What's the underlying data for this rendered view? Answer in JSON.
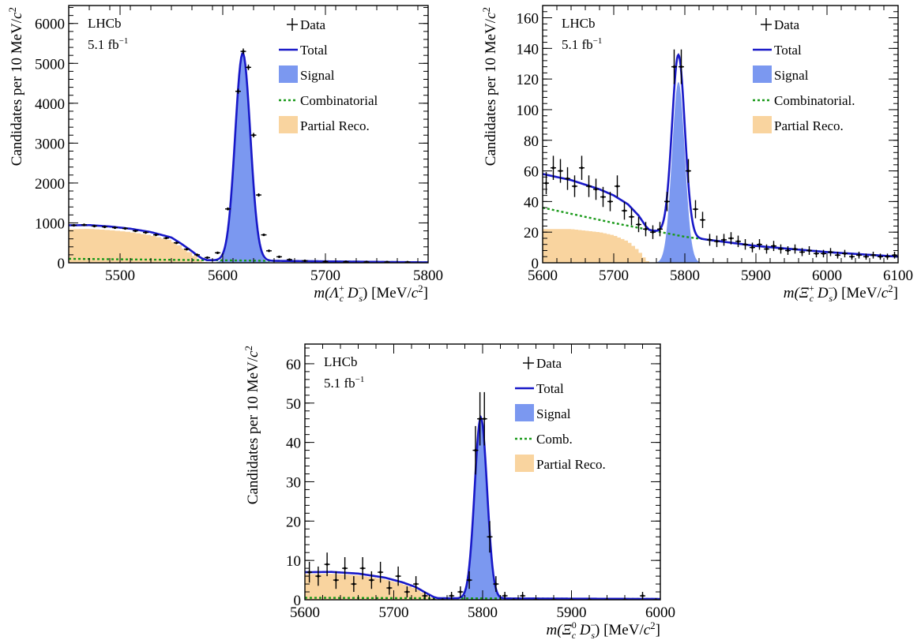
{
  "chart_data": [
    {
      "id": "lambda",
      "type": "histogram",
      "experiment": "LHCb",
      "luminosity_base": "5.1 fb",
      "luminosity_sup": "−1",
      "ylabel_main": "Candidates per 10 MeV/",
      "ylabel_unit": "c",
      "ylabel_sup": "2",
      "xlabel": {
        "pre": "m(",
        "part": "Λ",
        "sub": "c",
        "sup": "+",
        "mid": " D",
        "sub2": "s",
        "sup2": "−",
        "post": ") [MeV/",
        "unit": "c",
        "unitsup": "2",
        "end": "]"
      },
      "xlim": [
        5450,
        5800
      ],
      "ylim": [
        0,
        6450
      ],
      "xticks": [
        5500,
        5600,
        5700,
        5800
      ],
      "yticks": [
        0,
        1000,
        2000,
        3000,
        4000,
        5000,
        6000
      ],
      "legend": [
        "Data",
        "Total",
        "Signal",
        "Combinatorial",
        "Partial Reco."
      ],
      "signal": {
        "mean": 5619.5,
        "sigma": 7.4,
        "amp": 5200
      },
      "comb": [
        [
          5450,
          100
        ],
        [
          5800,
          10
        ]
      ],
      "partial": [
        [
          5450,
          840
        ],
        [
          5470,
          850
        ],
        [
          5490,
          820
        ],
        [
          5510,
          770
        ],
        [
          5530,
          690
        ],
        [
          5550,
          560
        ],
        [
          5560,
          400
        ],
        [
          5570,
          220
        ],
        [
          5575,
          120
        ],
        [
          5580,
          40
        ],
        [
          5585,
          0
        ]
      ],
      "data": [
        [
          5455,
          940
        ],
        [
          5465,
          950
        ],
        [
          5475,
          920
        ],
        [
          5485,
          900
        ],
        [
          5495,
          880
        ],
        [
          5505,
          860
        ],
        [
          5515,
          800
        ],
        [
          5525,
          760
        ],
        [
          5535,
          700
        ],
        [
          5545,
          620
        ],
        [
          5555,
          500
        ],
        [
          5565,
          340
        ],
        [
          5575,
          200
        ],
        [
          5585,
          130
        ],
        [
          5595,
          250
        ],
        [
          5605,
          1350
        ],
        [
          5615,
          4300
        ],
        [
          5620,
          5300
        ],
        [
          5625,
          4900
        ],
        [
          5630,
          3200
        ],
        [
          5635,
          1700
        ],
        [
          5640,
          700
        ],
        [
          5645,
          300
        ],
        [
          5655,
          150
        ],
        [
          5665,
          80
        ],
        [
          5680,
          50
        ],
        [
          5700,
          30
        ],
        [
          5720,
          25
        ],
        [
          5740,
          20
        ],
        [
          5760,
          18
        ],
        [
          5780,
          15
        ]
      ]
    },
    {
      "id": "xi-plus",
      "type": "histogram",
      "experiment": "LHCb",
      "luminosity_base": "5.1 fb",
      "luminosity_sup": "−1",
      "ylabel_main": "Candidates per 10 MeV/",
      "ylabel_unit": "c",
      "ylabel_sup": "2",
      "xlabel": {
        "pre": "m(",
        "part": "Ξ",
        "sub": "c",
        "sup": "+",
        "mid": " D",
        "sub2": "s",
        "sup2": "−",
        "post": ") [MeV/",
        "unit": "c",
        "unitsup": "2",
        "end": "]"
      },
      "xlim": [
        5600,
        6100
      ],
      "ylim": [
        0,
        168
      ],
      "xticks": [
        5600,
        5700,
        5800,
        5900,
        6000,
        6100
      ],
      "yticks": [
        0,
        20,
        40,
        60,
        80,
        100,
        120,
        140,
        160
      ],
      "legend": [
        "Data",
        "Total",
        "Signal",
        "Combinatorial.",
        "Partial Reco."
      ],
      "signal": {
        "mean": 5791,
        "sigma": 9,
        "amp": 118
      },
      "comb": [
        [
          5600,
          36
        ],
        [
          5700,
          26
        ],
        [
          5800,
          17
        ],
        [
          5900,
          11
        ],
        [
          6000,
          7
        ],
        [
          6100,
          4
        ]
      ],
      "partial": [
        [
          5600,
          22
        ],
        [
          5640,
          22
        ],
        [
          5680,
          20
        ],
        [
          5700,
          18
        ],
        [
          5720,
          14
        ],
        [
          5735,
          8
        ],
        [
          5745,
          2
        ],
        [
          5750,
          0
        ]
      ],
      "data": [
        [
          5605,
          52
        ],
        [
          5615,
          62
        ],
        [
          5625,
          60
        ],
        [
          5635,
          55
        ],
        [
          5645,
          50
        ],
        [
          5655,
          62
        ],
        [
          5665,
          50
        ],
        [
          5675,
          48
        ],
        [
          5685,
          43
        ],
        [
          5695,
          40
        ],
        [
          5705,
          50
        ],
        [
          5715,
          34
        ],
        [
          5725,
          30
        ],
        [
          5735,
          25
        ],
        [
          5745,
          22
        ],
        [
          5755,
          20
        ],
        [
          5765,
          22
        ],
        [
          5775,
          40
        ],
        [
          5785,
          128
        ],
        [
          5795,
          128
        ],
        [
          5805,
          60
        ],
        [
          5815,
          35
        ],
        [
          5825,
          28
        ],
        [
          5835,
          15
        ],
        [
          5845,
          14
        ],
        [
          5855,
          15
        ],
        [
          5865,
          16
        ],
        [
          5875,
          14
        ],
        [
          5885,
          12
        ],
        [
          5895,
          10
        ],
        [
          5905,
          12
        ],
        [
          5915,
          9
        ],
        [
          5925,
          11
        ],
        [
          5935,
          9
        ],
        [
          5945,
          8
        ],
        [
          5955,
          9
        ],
        [
          5965,
          7
        ],
        [
          5975,
          8
        ],
        [
          5985,
          6
        ],
        [
          5995,
          6
        ],
        [
          6005,
          7
        ],
        [
          6015,
          5
        ],
        [
          6025,
          6
        ],
        [
          6035,
          4
        ],
        [
          6045,
          5
        ],
        [
          6055,
          4
        ],
        [
          6065,
          5
        ],
        [
          6075,
          4
        ],
        [
          6085,
          4
        ],
        [
          6095,
          5
        ]
      ]
    },
    {
      "id": "xi-zero",
      "type": "histogram",
      "experiment": "LHCb",
      "luminosity_base": "5.1 fb",
      "luminosity_sup": "−1",
      "ylabel_main": "Candidates per 10 MeV/",
      "ylabel_unit": "c",
      "ylabel_sup": "2",
      "xlabel": {
        "pre": "m(",
        "part": "Ξ",
        "sub": "c",
        "sup": "0",
        "mid": " D",
        "sub2": "s",
        "sup2": "−",
        "post": ") [MeV/",
        "unit": "c",
        "unitsup": "2",
        "end": "]"
      },
      "xlim": [
        5600,
        6000
      ],
      "ylim": [
        0,
        65
      ],
      "xticks": [
        5600,
        5700,
        5800,
        5900,
        6000
      ],
      "yticks": [
        0,
        10,
        20,
        30,
        40,
        50,
        60
      ],
      "legend": [
        "Data",
        "Total",
        "Signal",
        "Comb.",
        "Partial Reco."
      ],
      "signal": {
        "mean": 5798,
        "sigma": 7,
        "amp": 46
      },
      "comb": [
        [
          5600,
          0.5
        ],
        [
          6000,
          0.2
        ]
      ],
      "partial": [
        [
          5600,
          6.5
        ],
        [
          5630,
          6.6
        ],
        [
          5660,
          6.2
        ],
        [
          5690,
          5.2
        ],
        [
          5710,
          4.0
        ],
        [
          5725,
          2.8
        ],
        [
          5735,
          1.5
        ],
        [
          5745,
          0.3
        ],
        [
          5750,
          0
        ]
      ],
      "data": [
        [
          5605,
          7
        ],
        [
          5615,
          6
        ],
        [
          5625,
          9
        ],
        [
          5635,
          5
        ],
        [
          5645,
          8
        ],
        [
          5655,
          4
        ],
        [
          5665,
          8
        ],
        [
          5675,
          5
        ],
        [
          5685,
          7
        ],
        [
          5695,
          3
        ],
        [
          5705,
          6
        ],
        [
          5715,
          2
        ],
        [
          5725,
          4
        ],
        [
          5735,
          1
        ],
        [
          5745,
          0
        ],
        [
          5755,
          0
        ],
        [
          5765,
          1
        ],
        [
          5775,
          2
        ],
        [
          5785,
          5
        ],
        [
          5792,
          38
        ],
        [
          5797,
          46
        ],
        [
          5802,
          46
        ],
        [
          5808,
          16
        ],
        [
          5815,
          4
        ],
        [
          5825,
          1
        ],
        [
          5835,
          0
        ],
        [
          5845,
          1
        ],
        [
          5860,
          0
        ],
        [
          5880,
          0
        ],
        [
          5900,
          0
        ],
        [
          5920,
          0
        ],
        [
          5940,
          0
        ],
        [
          5960,
          0
        ],
        [
          5980,
          1
        ],
        [
          5995,
          0
        ]
      ]
    }
  ]
}
